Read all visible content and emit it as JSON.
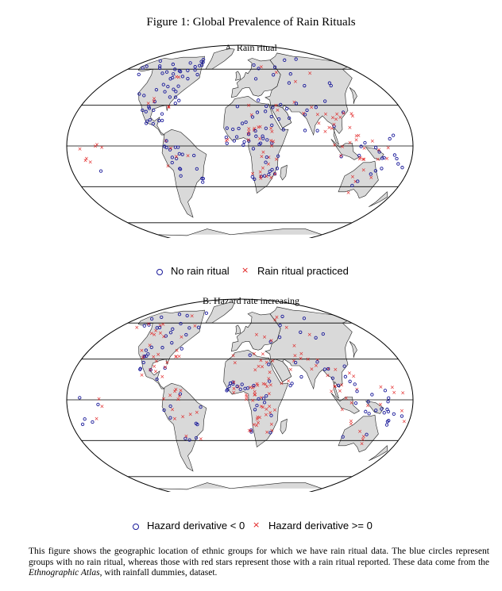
{
  "figure": {
    "title": "Figure 1: Global Prevalence of Rain Rituals",
    "caption_part1": "This figure shows the geographic location of ethnic groups for which we have rain ritual data.  The blue circles represent groups with no rain ritual, whereas those with red stars represent those with a rain ritual reported. These data come from the ",
    "caption_italic": "Ethnographic Atlas",
    "caption_part2": ", with rainfall dummies, dataset."
  },
  "colors": {
    "land": "#d9d9d9",
    "circle_marker": "#1a1a9a",
    "cross_marker": "#e01818",
    "graticule": "#000000"
  },
  "panels": [
    {
      "title": "A.  Rain ritual",
      "legend": {
        "circle_label": "No rain ritual",
        "cross_label": "Rain ritual practiced"
      }
    },
    {
      "title": "B.  Hazard rate increasing",
      "legend": {
        "circle_label": "Hazard derivative < 0",
        "cross_label": "Hazard derivative >= 0"
      }
    }
  ]
}
